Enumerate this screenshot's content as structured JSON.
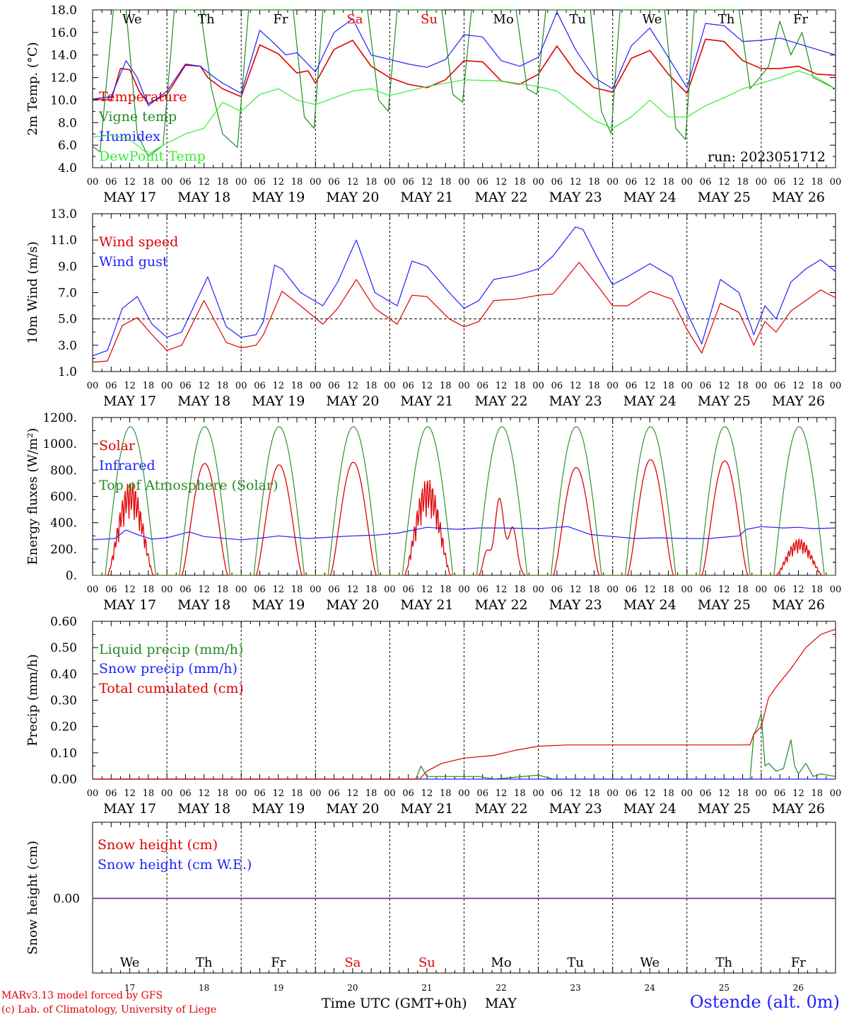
{
  "meta": {
    "run": "run: 2023051712",
    "station": "Ostende (alt. 0m)",
    "credit_line1": "MARv3.13 model forced by GFS",
    "credit_line2": "(c) Lab. of Climatology, University of Liege",
    "xlabel": "Time UTC (GMT+0h)",
    "month": "MAY"
  },
  "axis": {
    "hour_ticks": [
      "00",
      "06",
      "12",
      "18"
    ],
    "hour_end": "00",
    "day_labels": [
      "MAY 17",
      "MAY 18",
      "MAY 19",
      "MAY 20",
      "MAY 21",
      "MAY 22",
      "MAY 23",
      "MAY 24",
      "MAY 25",
      "MAY 26"
    ],
    "weekdays": [
      "We",
      "Th",
      "Fr",
      "Sa",
      "Su",
      "Mo",
      "Tu",
      "We",
      "Th",
      "Fr"
    ],
    "weekday_colors": [
      "#000000",
      "#000000",
      "#000000",
      "#e00000",
      "#e00000",
      "#000000",
      "#000000",
      "#000000",
      "#000000",
      "#000000"
    ],
    "day_numbers": [
      "17",
      "18",
      "19",
      "20",
      "21",
      "22",
      "23",
      "24",
      "25",
      "26"
    ]
  },
  "chart_data": [
    {
      "type": "line",
      "ylabel": "2m Temp. (°C)",
      "ylim": [
        4,
        18
      ],
      "yticks": [
        "4.0",
        "6.0",
        "8.0",
        "10.0",
        "12.0",
        "14.0",
        "16.0",
        "18.0"
      ],
      "x_unit": "days since 2023-05-17 00 UTC",
      "series": [
        {
          "name": "Temperature",
          "color": "#e00000",
          "x": [
            0,
            0.25,
            0.375,
            0.5,
            0.625,
            0.75,
            1.0,
            1.25,
            1.45,
            1.55,
            1.75,
            2.0,
            2.25,
            2.5,
            2.75,
            2.9,
            3.0,
            3.25,
            3.5,
            3.75,
            4.0,
            4.25,
            4.5,
            4.75,
            5.0,
            5.25,
            5.5,
            5.75,
            6.0,
            6.25,
            6.5,
            6.75,
            7.0,
            7.25,
            7.5,
            7.75,
            8.0,
            8.25,
            8.5,
            8.75,
            9.0,
            9.25,
            9.5,
            9.75,
            10.0
          ],
          "y": [
            10.1,
            10.0,
            12.8,
            12.7,
            10.8,
            9.7,
            10.5,
            13.1,
            13.0,
            12.0,
            11.0,
            10.3,
            14.9,
            14.1,
            12.4,
            12.6,
            11.5,
            14.5,
            15.3,
            13.0,
            12.0,
            11.4,
            11.1,
            11.8,
            13.5,
            13.4,
            11.7,
            11.4,
            12.3,
            14.8,
            12.5,
            11.1,
            10.7,
            13.7,
            14.4,
            12.3,
            10.6,
            15.4,
            15.2,
            13.5,
            12.8,
            12.8,
            13.0,
            12.3,
            12.2
          ]
        },
        {
          "name": "Vigne temp",
          "color": "#228b22",
          "x": [
            0,
            0.1,
            0.28,
            0.45,
            0.6,
            0.75,
            0.95,
            1.1,
            1.25,
            1.45,
            1.6,
            1.75,
            1.95,
            2.1,
            2.3,
            2.5,
            2.7,
            2.85,
            2.98,
            3.1,
            3.3,
            3.5,
            3.7,
            3.85,
            3.98,
            4.1,
            4.3,
            4.5,
            4.7,
            4.85,
            4.98,
            5.1,
            5.3,
            5.5,
            5.7,
            5.85,
            5.98,
            6.1,
            6.3,
            6.5,
            6.7,
            6.85,
            6.98,
            7.1,
            7.3,
            7.5,
            7.7,
            7.85,
            7.98,
            8.1,
            8.3,
            8.5,
            8.7,
            8.85,
            8.98,
            9.1,
            9.25,
            9.4,
            9.55,
            9.7,
            9.85,
            10.0
          ],
          "y": [
            5.9,
            5.4,
            18,
            18,
            7.0,
            5.0,
            6.0,
            18,
            18,
            18,
            11.0,
            7.0,
            5.8,
            18,
            18,
            18,
            18,
            8.5,
            7.5,
            18,
            18,
            18,
            18,
            10.0,
            9.0,
            18,
            18,
            18,
            18,
            10.5,
            9.8,
            18,
            18,
            18,
            18,
            11.0,
            10.5,
            18,
            18,
            18,
            18,
            9.0,
            7.0,
            18,
            18,
            18,
            18,
            7.5,
            6.5,
            18,
            18,
            18,
            18,
            11.0,
            12.0,
            13.0,
            17.0,
            14.0,
            16.0,
            12.0,
            11.5,
            11.0
          ]
        },
        {
          "name": "Humidex",
          "color": "#2020ff",
          "x": [
            0,
            0.25,
            0.45,
            0.6,
            0.75,
            1.0,
            1.25,
            1.45,
            1.6,
            1.75,
            2.0,
            2.25,
            2.45,
            2.6,
            2.75,
            3.0,
            3.25,
            3.5,
            3.75,
            4.0,
            4.25,
            4.5,
            4.75,
            5.0,
            5.25,
            5.5,
            5.75,
            6.0,
            6.25,
            6.5,
            6.75,
            7.0,
            7.25,
            7.5,
            7.75,
            8.0,
            8.25,
            8.5,
            8.75,
            9.0,
            9.25,
            9.5,
            9.75,
            10.0
          ],
          "y": [
            10.1,
            10.3,
            13.5,
            12.0,
            9.5,
            10.8,
            13.2,
            13.0,
            12.2,
            11.5,
            10.6,
            16.2,
            15.0,
            14.0,
            14.2,
            12.5,
            16.0,
            17.2,
            14.0,
            13.6,
            13.2,
            12.9,
            13.6,
            15.8,
            15.6,
            13.5,
            13.0,
            13.8,
            17.8,
            14.5,
            12.0,
            11.0,
            14.8,
            16.4,
            13.8,
            11.1,
            16.8,
            16.6,
            15.2,
            15.3,
            15.5,
            15.0,
            14.5,
            14.0
          ]
        },
        {
          "name": "DewPoint Temp",
          "color": "#33ee33",
          "x": [
            0,
            0.25,
            0.5,
            0.75,
            0.95,
            1.25,
            1.5,
            1.75,
            2.0,
            2.25,
            2.5,
            2.75,
            3.0,
            3.25,
            3.5,
            3.75,
            4.0,
            4.5,
            5.0,
            5.5,
            6.0,
            6.25,
            6.5,
            6.75,
            7.0,
            7.25,
            7.5,
            7.75,
            8.0,
            8.25,
            8.5,
            8.75,
            9.0,
            9.25,
            9.5,
            9.75,
            10.0
          ],
          "y": [
            6.7,
            6.9,
            6.5,
            5.2,
            6.0,
            7.0,
            7.5,
            9.8,
            9.0,
            10.5,
            11.0,
            10.0,
            9.6,
            10.2,
            10.8,
            11.0,
            10.4,
            11.2,
            11.8,
            11.7,
            11.2,
            10.8,
            9.5,
            8.2,
            7.5,
            8.5,
            10.0,
            8.5,
            8.5,
            9.5,
            10.2,
            11.0,
            11.5,
            12.0,
            12.6,
            12.0,
            11.0
          ]
        }
      ]
    },
    {
      "type": "line",
      "ylabel": "10m Wind (m/s)",
      "ylim": [
        1,
        13
      ],
      "yticks": [
        "1.0",
        "3.0",
        "5.0",
        "7.0",
        "9.0",
        "11.0",
        "13.0"
      ],
      "x_unit": "days since 2023-05-17 00 UTC",
      "reference_line": 5,
      "series": [
        {
          "name": "Wind speed",
          "color": "#e00000",
          "x": [
            0,
            0.2,
            0.4,
            0.6,
            0.8,
            1.0,
            1.2,
            1.5,
            1.8,
            2.0,
            2.2,
            2.3,
            2.55,
            2.8,
            3.1,
            3.3,
            3.55,
            3.8,
            4.1,
            4.3,
            4.5,
            4.8,
            5.0,
            5.2,
            5.4,
            5.7,
            6.0,
            6.2,
            6.55,
            6.8,
            7.0,
            7.2,
            7.5,
            7.8,
            8.0,
            8.2,
            8.45,
            8.7,
            8.9,
            9.05,
            9.2,
            9.4,
            9.6,
            9.8,
            10.0
          ],
          "y": [
            1.7,
            1.8,
            4.5,
            5.1,
            3.8,
            2.6,
            3.0,
            6.4,
            3.2,
            2.8,
            3.0,
            3.8,
            7.1,
            6.0,
            4.6,
            5.8,
            8.0,
            5.8,
            4.6,
            6.8,
            6.7,
            5.0,
            4.4,
            4.8,
            6.4,
            6.5,
            6.8,
            6.9,
            9.3,
            7.5,
            6.0,
            6.0,
            7.1,
            6.5,
            4.2,
            2.4,
            6.2,
            5.5,
            3.0,
            4.8,
            4.0,
            5.6,
            6.4,
            7.2,
            6.6
          ]
        },
        {
          "name": "Wind gust",
          "color": "#2020ff",
          "x": [
            0,
            0.2,
            0.4,
            0.6,
            0.8,
            1.0,
            1.2,
            1.55,
            1.8,
            2.0,
            2.2,
            2.3,
            2.45,
            2.55,
            2.8,
            3.1,
            3.3,
            3.5,
            3.55,
            3.8,
            4.1,
            4.3,
            4.5,
            4.8,
            5.0,
            5.2,
            5.4,
            5.7,
            6.0,
            6.2,
            6.5,
            6.6,
            6.8,
            7.0,
            7.2,
            7.5,
            7.8,
            8.0,
            8.2,
            8.45,
            8.7,
            8.9,
            9.05,
            9.2,
            9.4,
            9.6,
            9.8,
            10.0
          ],
          "y": [
            2.2,
            2.6,
            5.8,
            6.7,
            4.6,
            3.6,
            4.0,
            8.2,
            4.4,
            3.6,
            3.8,
            4.8,
            9.1,
            8.8,
            7.0,
            6.0,
            7.8,
            10.4,
            11.0,
            7.0,
            6.0,
            9.4,
            9.0,
            7.0,
            5.8,
            6.4,
            8.0,
            8.3,
            8.8,
            9.8,
            12.0,
            11.8,
            9.6,
            7.6,
            8.2,
            9.2,
            8.2,
            5.5,
            3.1,
            8.0,
            7.0,
            3.8,
            6.0,
            5.0,
            7.8,
            8.8,
            9.5,
            8.6
          ]
        }
      ]
    },
    {
      "type": "line",
      "ylabel": "Energy fluxes (W/m²)",
      "ylim": [
        0,
        1200
      ],
      "yticks": [
        "0.",
        "200.",
        "400.",
        "600.",
        "800.",
        "1000.",
        "1200."
      ],
      "x_unit": "days since 2023-05-17 00 UTC",
      "series": [
        {
          "name": "Solar",
          "color": "#e00000",
          "peak_day_amplitudes": [
            720,
            850,
            840,
            860,
            740,
            600,
            820,
            880,
            870,
            280
          ]
        },
        {
          "name": "Infrared",
          "color": "#2020ff",
          "x": [
            0,
            0.3,
            0.45,
            0.6,
            0.8,
            1.0,
            1.3,
            1.5,
            2.0,
            2.3,
            2.5,
            2.9,
            3.2,
            3.5,
            3.8,
            4.1,
            4.5,
            4.9,
            5.2,
            5.5,
            6.0,
            6.4,
            6.7,
            7.0,
            7.3,
            7.6,
            8.0,
            8.3,
            8.5,
            8.7,
            8.8,
            9.0,
            9.3,
            9.5,
            9.7,
            10.0
          ],
          "y": [
            270,
            280,
            345,
            310,
            275,
            285,
            330,
            295,
            270,
            285,
            300,
            280,
            290,
            300,
            305,
            320,
            365,
            350,
            360,
            360,
            355,
            370,
            310,
            295,
            280,
            285,
            280,
            280,
            290,
            300,
            350,
            370,
            360,
            365,
            355,
            360
          ]
        },
        {
          "name": "Top of Atmosphere (Solar)",
          "color": "#228b22",
          "peak": 1130,
          "day_fraction": [
            0.17,
            0.85
          ]
        }
      ]
    },
    {
      "type": "line",
      "ylabel": "Precip (mm/h)",
      "ylim": [
        0,
        0.6
      ],
      "yticks": [
        "0.00",
        "0.10",
        "0.20",
        "0.30",
        "0.40",
        "0.50",
        "0.60"
      ],
      "x_unit": "days since 2023-05-17 00 UTC",
      "series": [
        {
          "name": "Liquid precip (mm/h)",
          "color": "#228b22",
          "x": [
            0,
            4.35,
            4.42,
            4.5,
            4.6,
            5.0,
            5.2,
            5.4,
            6.0,
            6.2,
            8.85,
            8.9,
            8.95,
            9.0,
            9.05,
            9.1,
            9.2,
            9.3,
            9.4,
            9.45,
            9.5,
            9.6,
            9.7,
            9.8,
            10.0
          ],
          "y": [
            0,
            0,
            0.05,
            0.01,
            0.01,
            0.01,
            0.01,
            0,
            0.015,
            0,
            0,
            0.17,
            0.2,
            0.25,
            0.05,
            0.06,
            0.03,
            0.04,
            0.15,
            0.05,
            0.02,
            0.06,
            0.01,
            0.02,
            0.01
          ]
        },
        {
          "name": "Snow precip (mm/h)",
          "color": "#2020ff",
          "x": [
            0,
            10
          ],
          "y": [
            0,
            0
          ]
        },
        {
          "name": "Total cumulated (cm)",
          "color": "#e00000",
          "x": [
            0,
            4.4,
            4.5,
            4.7,
            5.0,
            5.4,
            5.7,
            6.0,
            6.4,
            8.85,
            8.9,
            9.0,
            9.1,
            9.2,
            9.4,
            9.6,
            9.8,
            10.0
          ],
          "y": [
            0,
            0,
            0.03,
            0.06,
            0.08,
            0.09,
            0.11,
            0.125,
            0.13,
            0.13,
            0.17,
            0.2,
            0.31,
            0.35,
            0.42,
            0.5,
            0.55,
            0.57
          ]
        }
      ]
    },
    {
      "type": "line",
      "ylabel": "Snow height (cm)",
      "yticks": [
        "0.00"
      ],
      "x_unit": "days since 2023-05-17 00 UTC",
      "series": [
        {
          "name": "Snow height (cm)",
          "color": "#e00000",
          "x": [
            0,
            10
          ],
          "y": [
            0,
            0
          ]
        },
        {
          "name": "Snow height (cm W.E.)",
          "color": "#2020ff",
          "x": [
            0,
            10
          ],
          "y": [
            0,
            0
          ]
        }
      ]
    }
  ]
}
